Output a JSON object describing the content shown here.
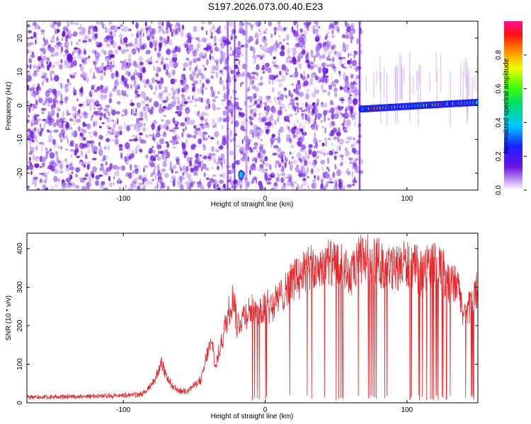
{
  "title": "S197.2026.073.00.40.E23",
  "colors": {
    "line": "#e8262a",
    "dot_purple": "#6a0fe0",
    "dot_light": "#c9a8f5",
    "axis": "#000000"
  },
  "chart_data": [
    {
      "type": "heatmap",
      "xlabel": "Height of straight line (km)",
      "ylabel": "Frequency (Hz)",
      "xlim": [
        -168,
        150
      ],
      "ylim": [
        -25,
        25
      ],
      "xticks": [
        -100,
        0,
        100
      ],
      "yticks": [
        20,
        10,
        0,
        -10,
        -20
      ],
      "colorbar": {
        "label": "Normalized spectral amplitude",
        "range": [
          0,
          1
        ],
        "ticks": [
          0.0,
          0.2,
          0.4,
          0.6,
          0.8
        ],
        "tick_labels": [
          "0.0",
          "0.2",
          "0.4",
          "0.6",
          "0.8"
        ]
      },
      "features": {
        "noise_region_x": [
          -168,
          68
        ],
        "signal_band_x": [
          68,
          150
        ],
        "signal_band_frequency_hz": 0,
        "signal_start_frequency_hz": -1,
        "signal_end_frequency_hz": 1,
        "isolated_blob": {
          "x": -17,
          "frequency_hz": -20.5
        }
      }
    },
    {
      "type": "line",
      "xlabel": "Height of straight line (km)",
      "ylabel": "SNR (10 * v/v)",
      "xlim": [
        -168,
        150
      ],
      "ylim": [
        0,
        440
      ],
      "xticks": [
        -100,
        0,
        100
      ],
      "yticks": [
        0,
        100,
        200,
        300,
        400
      ],
      "series": [
        {
          "name": "SNR",
          "x": [
            -168,
            -150,
            -130,
            -110,
            -95,
            -85,
            -78,
            -73,
            -70,
            -65,
            -60,
            -55,
            -50,
            -45,
            -40,
            -37,
            -35,
            -30,
            -25,
            -22,
            -20,
            -15,
            -10,
            -5,
            0,
            5,
            10,
            15,
            20,
            25,
            30,
            35,
            40,
            45,
            50,
            55,
            60,
            65,
            70,
            75,
            80,
            85,
            90,
            95,
            100,
            105,
            110,
            115,
            120,
            125,
            130,
            135,
            140,
            145,
            150
          ],
          "values": [
            15,
            15,
            17,
            18,
            20,
            25,
            60,
            100,
            70,
            40,
            30,
            32,
            45,
            60,
            140,
            150,
            90,
            170,
            250,
            280,
            200,
            230,
            240,
            230,
            250,
            255,
            270,
            300,
            320,
            330,
            350,
            340,
            360,
            365,
            350,
            355,
            320,
            360,
            380,
            370,
            365,
            350,
            345,
            355,
            360,
            350,
            340,
            355,
            355,
            350,
            300,
            310,
            230,
            250,
            300
          ]
        }
      ]
    }
  ]
}
